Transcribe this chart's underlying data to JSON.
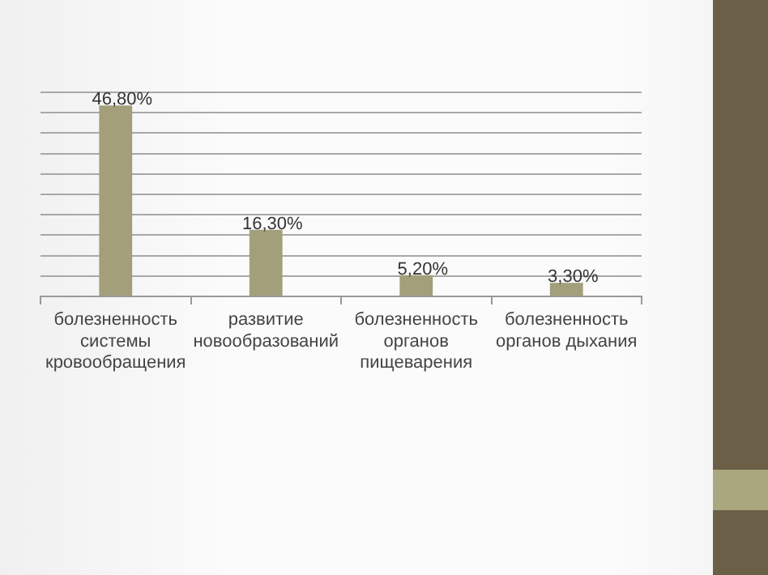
{
  "chart_data": {
    "type": "bar",
    "categories": [
      "болезненность системы кровообращения",
      "развитие новообразований",
      "болезненность органов пищеварения",
      "болезненность органов дыхания"
    ],
    "values": [
      46.8,
      16.3,
      5.2,
      3.3
    ],
    "value_labels": [
      "46,80%",
      "16,30%",
      "5,20%",
      "3,30%"
    ],
    "color": "#a39f7b",
    "ylim": [
      0,
      50
    ],
    "yticks": [
      {
        "value": 0,
        "label": null
      },
      {
        "value": 5,
        "label": null
      },
      {
        "value": 10,
        "label": null
      },
      {
        "value": 15,
        "label": null
      },
      {
        "value": 20,
        "label": null
      },
      {
        "value": 25,
        "label": null
      },
      {
        "value": 30,
        "label": null
      },
      {
        "value": 35,
        "label": null
      },
      {
        "value": 40,
        "label": null
      },
      {
        "value": 45,
        "label": null
      },
      {
        "value": 50,
        "label": null
      }
    ],
    "grid": "y",
    "tick_labels": "x"
  }
}
